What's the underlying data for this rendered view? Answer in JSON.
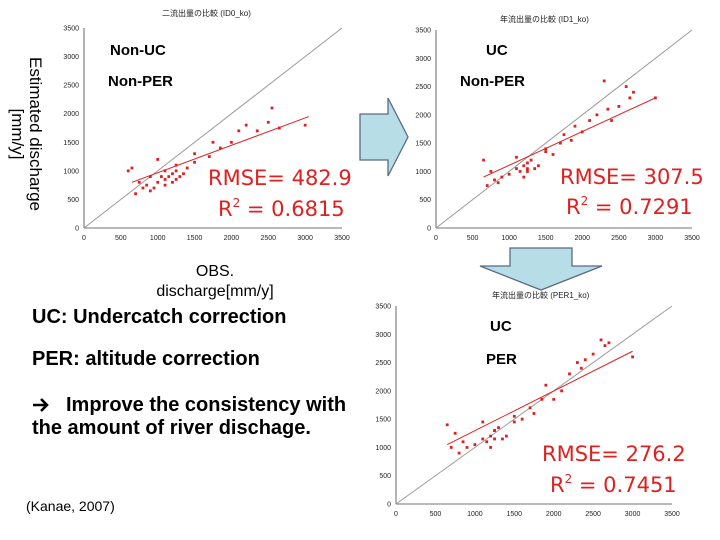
{
  "charts": [
    {
      "title": "二流出量の比較 (ID0_ko)",
      "label_top": "Non-UC",
      "label_bottom": "Non-PER",
      "rmse_text": "RMSE= 482.9",
      "r2_prefix": "R",
      "r2_sup": "2",
      "r2_value": " = 0.6815"
    },
    {
      "title": "年流出量の比較 (ID1_ko)",
      "label_top": "UC",
      "label_bottom": "Non-PER",
      "rmse_text": "RMSE= 307.5",
      "r2_prefix": "R",
      "r2_sup": "2",
      "r2_value": " = 0.7291"
    },
    {
      "title": "年流出量の比較 (PER1_ko)",
      "label_top": "UC",
      "label_bottom": "PER",
      "rmse_text": "RMSE= 276.2",
      "r2_prefix": "R",
      "r2_sup": "2",
      "r2_value": " = 0.7451"
    }
  ],
  "axes": {
    "ylabel": "Estimated discharge [mm/y]",
    "xlabel": "OBS. discharge[mm/y]"
  },
  "text": {
    "uc_def": "UC: Undercatch correction",
    "per_def": "PER: altitude correction",
    "conclusion": "Improve the consistency with the amount of river dischage.",
    "citation": "(Kanae, 2007)"
  },
  "colors": {
    "points": "#e02020",
    "regression": "#e02020",
    "one_to_one": "#9a9a9a",
    "arrow_fill": "#b7dde6",
    "arrow_stroke": "#5a6a88"
  },
  "chart_data": [
    {
      "type": "scatter",
      "title": "二流出量の比較 (ID0_ko)",
      "xlabel": "OBS. discharge[mm/y]",
      "ylabel": "Estimated discharge [mm/y]",
      "xlim": [
        0,
        3500
      ],
      "ylim": [
        0,
        3500
      ],
      "xticks": [
        0,
        500,
        1000,
        1500,
        2000,
        2500,
        3000,
        3500
      ],
      "yticks": [
        0,
        500,
        1000,
        1500,
        2000,
        2500,
        3000,
        3500
      ],
      "x": [
        700,
        750,
        800,
        850,
        900,
        950,
        1000,
        1050,
        1100,
        1100,
        1150,
        1200,
        1200,
        1250,
        1250,
        1300,
        1350,
        1400,
        1500,
        600,
        650,
        1100,
        1250,
        1500,
        1700,
        1750,
        1850,
        2000,
        2100,
        2200,
        2350,
        2500,
        2550,
        2650,
        3000,
        900,
        1000
      ],
      "y": [
        600,
        800,
        700,
        750,
        650,
        700,
        800,
        900,
        850,
        750,
        900,
        950,
        800,
        850,
        1000,
        900,
        950,
        1050,
        1150,
        1000,
        1050,
        1000,
        1100,
        1300,
        1250,
        1500,
        1400,
        1500,
        1700,
        1800,
        1700,
        1850,
        2100,
        1750,
        1800,
        900,
        1200
      ],
      "fit": {
        "x": [
          650,
          3050
        ],
        "y": [
          800,
          1950
        ]
      },
      "one_to_one": true,
      "annotations": [
        "RMSE= 482.9",
        "R2 = 0.6815"
      ]
    },
    {
      "type": "scatter",
      "title": "年流出量の比較 (ID1_ko)",
      "xlabel": "OBS. discharge[mm/y]",
      "ylabel": "Estimated discharge [mm/y]",
      "xlim": [
        0,
        3500
      ],
      "ylim": [
        0,
        3500
      ],
      "xticks": [
        0,
        500,
        1000,
        1500,
        2000,
        2500,
        3000,
        3500
      ],
      "yticks": [
        0,
        500,
        1000,
        1500,
        2000,
        2500,
        3000,
        3500
      ],
      "x": [
        700,
        750,
        800,
        850,
        900,
        1000,
        1100,
        1150,
        1200,
        1200,
        1250,
        1250,
        1300,
        1350,
        1400,
        1500,
        1600,
        650,
        1100,
        1250,
        1500,
        1700,
        1750,
        1850,
        2000,
        2100,
        2200,
        2350,
        2500,
        2600,
        2650,
        2700,
        3000,
        1900,
        2300,
        2400
      ],
      "y": [
        750,
        1000,
        850,
        800,
        900,
        950,
        1050,
        1000,
        1100,
        900,
        1150,
        1000,
        1200,
        1050,
        1100,
        1350,
        1300,
        1200,
        1250,
        1050,
        1400,
        1500,
        1650,
        1550,
        1700,
        1900,
        2000,
        2100,
        2150,
        2500,
        2300,
        2400,
        2300,
        1800,
        2600,
        1900
      ],
      "fit": {
        "x": [
          650,
          3000
        ],
        "y": [
          900,
          2300
        ]
      },
      "one_to_one": true,
      "annotations": [
        "RMSE= 307.5",
        "R2 = 0.7291"
      ]
    },
    {
      "type": "scatter",
      "title": "年流出量の比較 (PER1_ko)",
      "xlabel": "OBS. discharge[mm/y]",
      "ylabel": "Estimated discharge [mm/y]",
      "xlim": [
        0,
        3500
      ],
      "ylim": [
        0,
        3500
      ],
      "xticks": [
        0,
        500,
        1000,
        1500,
        2000,
        2500,
        3000,
        3500
      ],
      "yticks": [
        0,
        500,
        1000,
        1500,
        2000,
        2500,
        3000,
        3500
      ],
      "x": [
        700,
        750,
        800,
        850,
        900,
        1000,
        1100,
        1150,
        1200,
        1200,
        1250,
        1250,
        1300,
        1350,
        1400,
        1500,
        1600,
        650,
        1100,
        1250,
        1500,
        1700,
        1750,
        1850,
        2000,
        2100,
        2200,
        2350,
        2500,
        2600,
        2650,
        2700,
        3000,
        1900,
        2300,
        2400
      ],
      "y": [
        1000,
        1250,
        900,
        1100,
        1000,
        1050,
        1150,
        1100,
        1200,
        1000,
        1300,
        1150,
        1350,
        1150,
        1200,
        1450,
        1500,
        1400,
        1450,
        1300,
        1550,
        1700,
        1600,
        1850,
        1850,
        2000,
        2300,
        2400,
        2650,
        2900,
        2800,
        2850,
        2600,
        2100,
        2500,
        2550
      ],
      "fit": {
        "x": [
          650,
          3000
        ],
        "y": [
          1050,
          2700
        ]
      },
      "one_to_one": true,
      "annotations": [
        "RMSE= 276.2",
        "R2 = 0.7451"
      ]
    }
  ]
}
